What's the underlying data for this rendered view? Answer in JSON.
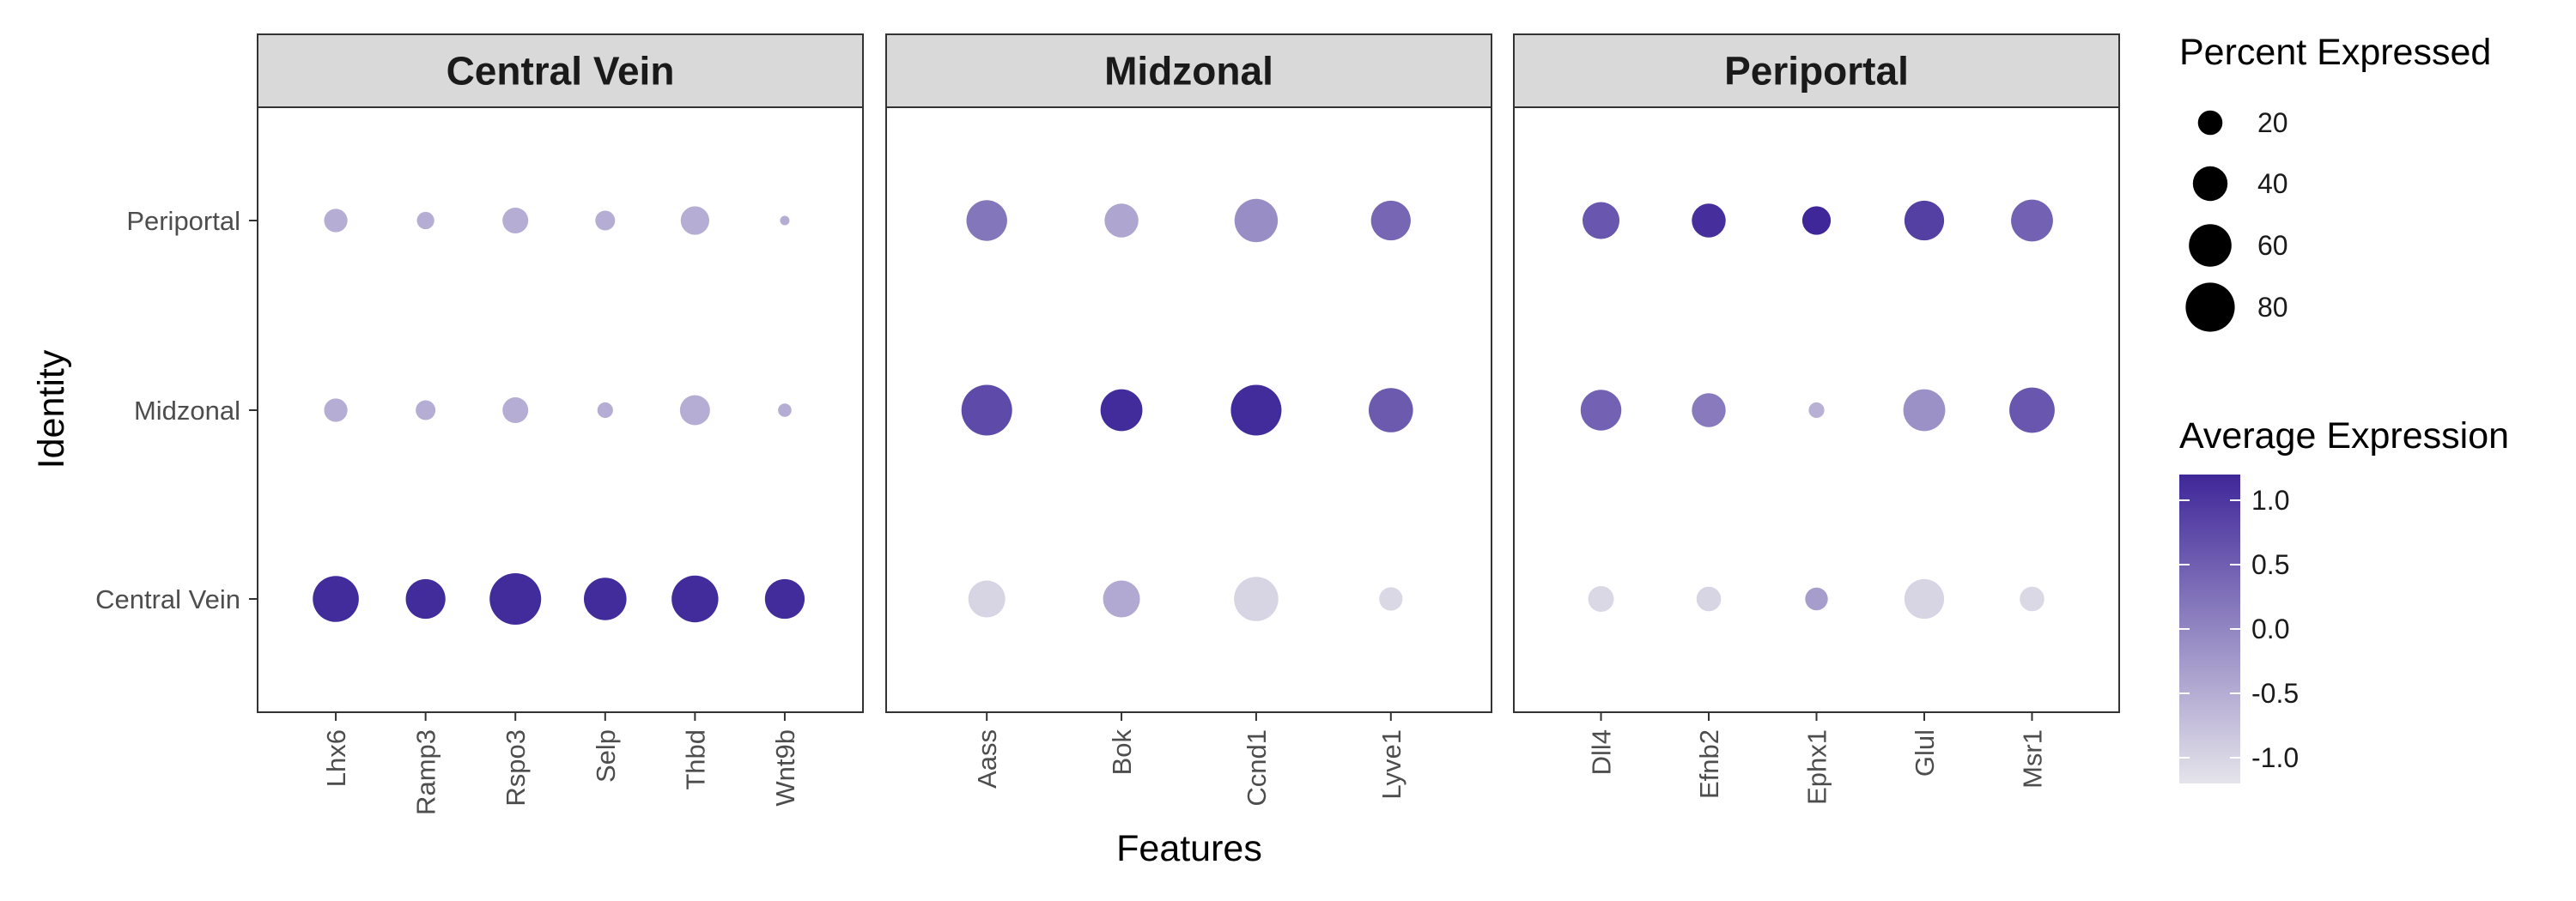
{
  "chart_data": {
    "type": "scatter",
    "subtype": "dot-plot",
    "xlabel": "Features",
    "ylabel": "Identity",
    "identities": [
      "Central Vein",
      "Midzonal",
      "Periportal"
    ],
    "panels": [
      {
        "title": "Central Vein",
        "features": [
          "Lhx6",
          "Ramp3",
          "Rspo3",
          "Selp",
          "Thbd",
          "Wnt9b"
        ]
      },
      {
        "title": "Midzonal",
        "features": [
          "Aass",
          "Bok",
          "Ccnd1",
          "Lyve1"
        ]
      },
      {
        "title": "Periportal",
        "features": [
          "Dll4",
          "Efnb2",
          "Ephx1",
          "Glul",
          "Msr1"
        ]
      }
    ],
    "points": [
      {
        "feature": "Lhx6",
        "identity": "Periportal",
        "pct": 18,
        "avg": -0.5
      },
      {
        "feature": "Lhx6",
        "identity": "Midzonal",
        "pct": 18,
        "avg": -0.5
      },
      {
        "feature": "Lhx6",
        "identity": "Central Vein",
        "pct": 70,
        "avg": 1.15
      },
      {
        "feature": "Ramp3",
        "identity": "Periportal",
        "pct": 10,
        "avg": -0.5
      },
      {
        "feature": "Ramp3",
        "identity": "Midzonal",
        "pct": 13,
        "avg": -0.5
      },
      {
        "feature": "Ramp3",
        "identity": "Central Vein",
        "pct": 52,
        "avg": 1.15
      },
      {
        "feature": "Rspo3",
        "identity": "Periportal",
        "pct": 22,
        "avg": -0.5
      },
      {
        "feature": "Rspo3",
        "identity": "Midzonal",
        "pct": 22,
        "avg": -0.5
      },
      {
        "feature": "Rspo3",
        "identity": "Central Vein",
        "pct": 88,
        "avg": 1.15
      },
      {
        "feature": "Selp",
        "identity": "Periportal",
        "pct": 13,
        "avg": -0.5
      },
      {
        "feature": "Selp",
        "identity": "Midzonal",
        "pct": 8,
        "avg": -0.5
      },
      {
        "feature": "Selp",
        "identity": "Central Vein",
        "pct": 60,
        "avg": 1.15
      },
      {
        "feature": "Thbd",
        "identity": "Periportal",
        "pct": 27,
        "avg": -0.5
      },
      {
        "feature": "Thbd",
        "identity": "Midzonal",
        "pct": 30,
        "avg": -0.5
      },
      {
        "feature": "Thbd",
        "identity": "Central Vein",
        "pct": 72,
        "avg": 1.15
      },
      {
        "feature": "Wnt9b",
        "identity": "Periportal",
        "pct": 3,
        "avg": -0.5
      },
      {
        "feature": "Wnt9b",
        "identity": "Midzonal",
        "pct": 6,
        "avg": -0.5
      },
      {
        "feature": "Wnt9b",
        "identity": "Central Vein",
        "pct": 52,
        "avg": 1.15
      },
      {
        "feature": "Aass",
        "identity": "Periportal",
        "pct": 55,
        "avg": 0.2
      },
      {
        "feature": "Aass",
        "identity": "Midzonal",
        "pct": 85,
        "avg": 0.75
      },
      {
        "feature": "Aass",
        "identity": "Central Vein",
        "pct": 45,
        "avg": -1.0
      },
      {
        "feature": "Bok",
        "identity": "Periportal",
        "pct": 38,
        "avg": -0.4
      },
      {
        "feature": "Bok",
        "identity": "Midzonal",
        "pct": 58,
        "avg": 1.15
      },
      {
        "feature": "Bok",
        "identity": "Central Vein",
        "pct": 45,
        "avg": -0.45
      },
      {
        "feature": "Ccnd1",
        "identity": "Periportal",
        "pct": 62,
        "avg": -0.1
      },
      {
        "feature": "Ccnd1",
        "identity": "Midzonal",
        "pct": 85,
        "avg": 1.15
      },
      {
        "feature": "Ccnd1",
        "identity": "Central Vein",
        "pct": 65,
        "avg": -1.0
      },
      {
        "feature": "Lyve1",
        "identity": "Periportal",
        "pct": 52,
        "avg": 0.4
      },
      {
        "feature": "Lyve1",
        "identity": "Midzonal",
        "pct": 65,
        "avg": 0.55
      },
      {
        "feature": "Lyve1",
        "identity": "Central Vein",
        "pct": 18,
        "avg": -1.05
      },
      {
        "feature": "Dll4",
        "identity": "Periportal",
        "pct": 45,
        "avg": 0.6
      },
      {
        "feature": "Dll4",
        "identity": "Midzonal",
        "pct": 55,
        "avg": 0.45
      },
      {
        "feature": "Dll4",
        "identity": "Central Vein",
        "pct": 22,
        "avg": -1.05
      },
      {
        "feature": "Efnb2",
        "identity": "Periportal",
        "pct": 38,
        "avg": 1.1
      },
      {
        "feature": "Efnb2",
        "identity": "Midzonal",
        "pct": 38,
        "avg": 0.15
      },
      {
        "feature": "Efnb2",
        "identity": "Central Vein",
        "pct": 20,
        "avg": -1.0
      },
      {
        "feature": "Ephx1",
        "identity": "Periportal",
        "pct": 27,
        "avg": 1.2
      },
      {
        "feature": "Ephx1",
        "identity": "Midzonal",
        "pct": 8,
        "avg": -0.55
      },
      {
        "feature": "Ephx1",
        "identity": "Central Vein",
        "pct": 17,
        "avg": -0.3
      },
      {
        "feature": "Glul",
        "identity": "Periportal",
        "pct": 52,
        "avg": 0.9
      },
      {
        "feature": "Glul",
        "identity": "Midzonal",
        "pct": 58,
        "avg": -0.15
      },
      {
        "feature": "Glul",
        "identity": "Central Vein",
        "pct": 52,
        "avg": -1.0
      },
      {
        "feature": "Msr1",
        "identity": "Periportal",
        "pct": 58,
        "avg": 0.45
      },
      {
        "feature": "Msr1",
        "identity": "Midzonal",
        "pct": 68,
        "avg": 0.6
      },
      {
        "feature": "Msr1",
        "identity": "Central Vein",
        "pct": 20,
        "avg": -1.05
      }
    ],
    "size_legend": {
      "title": "Percent Expressed",
      "values": [
        20,
        40,
        60,
        80
      ],
      "labels": [
        "20",
        "40",
        "60",
        "80"
      ]
    },
    "color_legend": {
      "title": "Average Expression",
      "low_color": "#e5e4eb",
      "high_color": "#3f2799",
      "range": [
        -1.2,
        1.2
      ],
      "ticks": [
        1.0,
        0.5,
        0.0,
        -0.5,
        -1.0
      ],
      "tick_labels": [
        "1.0",
        "0.5",
        "0.0",
        "-0.5",
        "-1.0"
      ]
    },
    "strip_color": "#d9d9d9",
    "grid": false
  }
}
